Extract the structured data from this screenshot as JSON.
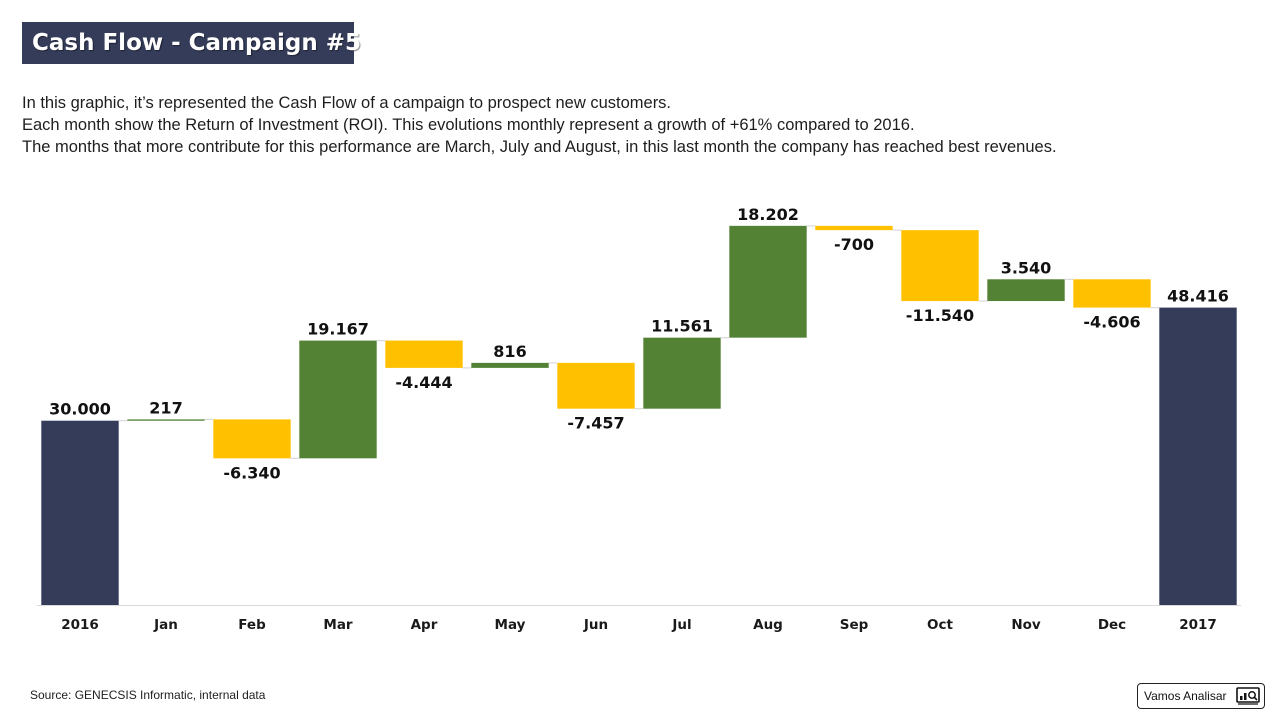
{
  "header": {
    "title": "Cash Flow - Campaign #5"
  },
  "description": {
    "line1": "In this graphic, it’s represented the Cash Flow of a campaign to prospect new customers.",
    "line2": "Each month show the Return of Investment (ROI). This evolutions monthly represent a growth of +61% compared to 2016.",
    "line3": "The months that more contribute for this performance are March, July and August, in this last month the company has reached best revenues."
  },
  "footer": {
    "source": "Source: GENECSIS Informatic, internal data",
    "brand": "Vamos Analisar",
    "brand_icon": "chart-magnifier-icon"
  },
  "colors": {
    "total": "#343c5a",
    "increase": "#548235",
    "decrease": "#ffc000",
    "connector": "#d9d9d9"
  },
  "chart_data": {
    "type": "waterfall",
    "categories": [
      "2016",
      "Jan",
      "Feb",
      "Mar",
      "Apr",
      "May",
      "Jun",
      "Jul",
      "Aug",
      "Sep",
      "Oct",
      "Nov",
      "Dec",
      "2017"
    ],
    "values": [
      30000,
      217,
      -6340,
      19167,
      -4444,
      816,
      -7457,
      11561,
      18202,
      -700,
      -11540,
      3540,
      -4606,
      48416
    ],
    "labels": [
      "30.000",
      "217",
      "-6.340",
      "19.167",
      "-4.444",
      "816",
      "-7.457",
      "11.561",
      "18.202",
      "-700",
      "-11.540",
      "3.540",
      "-4.606",
      "48.416"
    ],
    "kinds": [
      "total",
      "delta",
      "delta",
      "delta",
      "delta",
      "delta",
      "delta",
      "delta",
      "delta",
      "delta",
      "delta",
      "delta",
      "delta",
      "total"
    ],
    "ylim": [
      0,
      63000
    ],
    "grid": false,
    "legend": "none"
  }
}
